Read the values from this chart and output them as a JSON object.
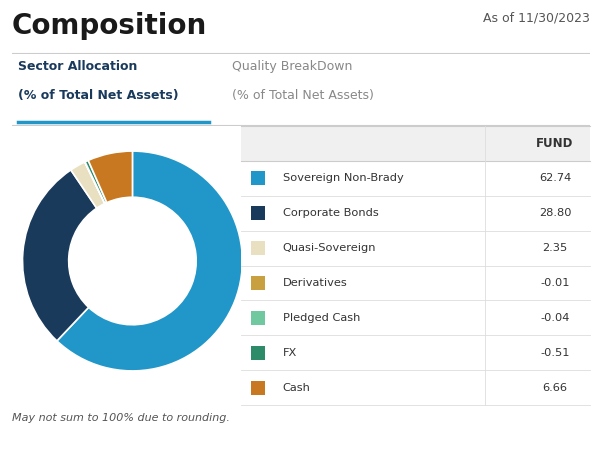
{
  "title": "Composition",
  "date_label": "As of 11/30/2023",
  "footer": "May not sum to 100% due to rounding.",
  "table_header": "FUND",
  "sectors": [
    {
      "label": "Sovereign Non-Brady",
      "color": "#2196C8",
      "abs_value": 62.74
    },
    {
      "label": "Corporate Bonds",
      "color": "#1A3A5C",
      "abs_value": 28.8
    },
    {
      "label": "Quasi-Sovereign",
      "color": "#E8E0C0",
      "abs_value": 2.35
    },
    {
      "label": "Derivatives",
      "color": "#C8A040",
      "abs_value": 0.01
    },
    {
      "label": "Pledged Cash",
      "color": "#70C8A0",
      "abs_value": 0.04
    },
    {
      "label": "FX",
      "color": "#2E8B6A",
      "abs_value": 0.51
    },
    {
      "label": "Cash",
      "color": "#C87820",
      "abs_value": 6.66
    }
  ],
  "display_values": [
    "62.74",
    "28.80",
    "2.35",
    "-0.01",
    "-0.04",
    "-0.51",
    "6.66"
  ],
  "bg_color": "#ffffff",
  "title_color": "#1a1a1a",
  "tab_active_color": "#1A3A5C",
  "tab_inactive_color": "#888888",
  "active_underline": "#2196C8",
  "separator_color": "#cccccc",
  "row_border_color": "#dddddd",
  "header_bg": "#f0f0f0"
}
